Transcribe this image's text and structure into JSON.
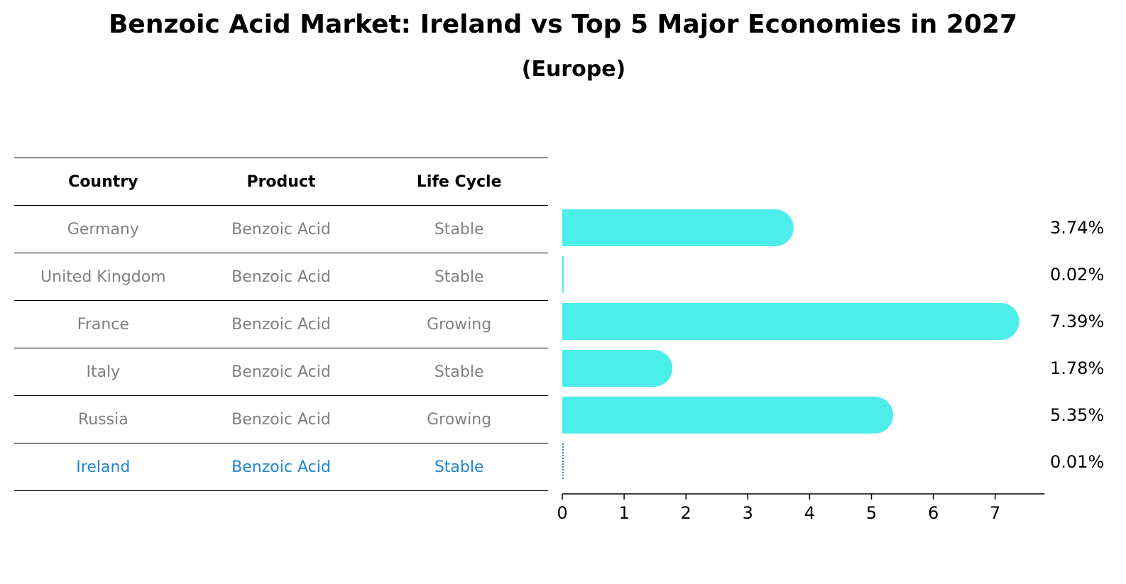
{
  "title": "Benzoic Acid Market: Ireland vs Top 5 Major Economies in 2027",
  "subtitle": "(Europe)",
  "table": {
    "headers": [
      "Country",
      "Product",
      "Life Cycle"
    ],
    "rows": [
      {
        "country": "Germany",
        "product": "Benzoic Acid",
        "life_cycle": "Stable"
      },
      {
        "country": "United Kingdom",
        "product": "Benzoic Acid",
        "life_cycle": "Stable"
      },
      {
        "country": "France",
        "product": "Benzoic Acid",
        "life_cycle": "Growing"
      },
      {
        "country": "Italy",
        "product": "Benzoic Acid",
        "life_cycle": "Stable"
      },
      {
        "country": "Russia",
        "product": "Benzoic Acid",
        "life_cycle": "Growing"
      },
      {
        "country": "Ireland",
        "product": "Benzoic Acid",
        "life_cycle": "Stable"
      }
    ]
  },
  "chart_data": {
    "type": "bar",
    "orientation": "horizontal",
    "categories": [
      "Germany",
      "United Kingdom",
      "France",
      "Italy",
      "Russia",
      "Ireland"
    ],
    "values": [
      3.74,
      0.02,
      7.39,
      1.78,
      5.35,
      0.01
    ],
    "value_labels": [
      "3.74%",
      "0.02%",
      "7.39%",
      "1.78%",
      "5.35%",
      "0.01%"
    ],
    "xticks": [
      0,
      1,
      2,
      3,
      4,
      5,
      6,
      7
    ],
    "xlim": [
      0,
      7.8
    ],
    "grid": false,
    "highlight_category": "Ireland",
    "colors": {
      "bar": "#4ceeea",
      "highlight": "#1f86d1",
      "text_muted": "#808080"
    }
  }
}
